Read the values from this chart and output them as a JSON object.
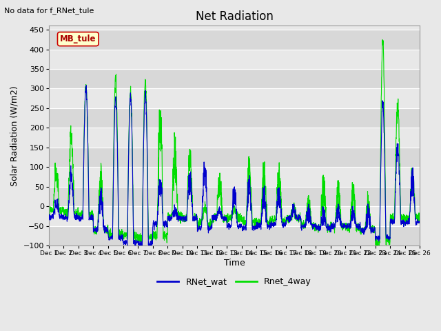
{
  "title": "Net Radiation",
  "no_data_text": "No data for f_RNet_tule",
  "annotation_text": "MB_tule",
  "xlabel": "Time",
  "ylabel": "Solar Radiation (W/m2)",
  "ylim": [
    -100,
    460
  ],
  "yticks": [
    -100,
    -50,
    0,
    50,
    100,
    150,
    200,
    250,
    300,
    350,
    400,
    450
  ],
  "xlim_days": [
    1,
    26
  ],
  "xtick_days": [
    1,
    2,
    3,
    4,
    5,
    6,
    7,
    8,
    9,
    10,
    11,
    12,
    13,
    14,
    15,
    16,
    17,
    18,
    19,
    20,
    21,
    22,
    23,
    24,
    25,
    26
  ],
  "line1_color": "#0000cc",
  "line2_color": "#00dd00",
  "line1_label": "RNet_wat",
  "line2_label": "Rnet_4way",
  "line_width": 0.8,
  "bg_color": "#e8e8e8",
  "plot_bg_color": "#e8e8e8",
  "title_fontsize": 12,
  "axis_label_fontsize": 9,
  "tick_fontsize": 8,
  "legend_fontsize": 9,
  "annotation_bg": "#ffffcc",
  "annotation_border": "#cc0000",
  "annotation_text_color": "#aa0000",
  "band_colors": [
    "#d8d8d8",
    "#e8e8e8"
  ]
}
